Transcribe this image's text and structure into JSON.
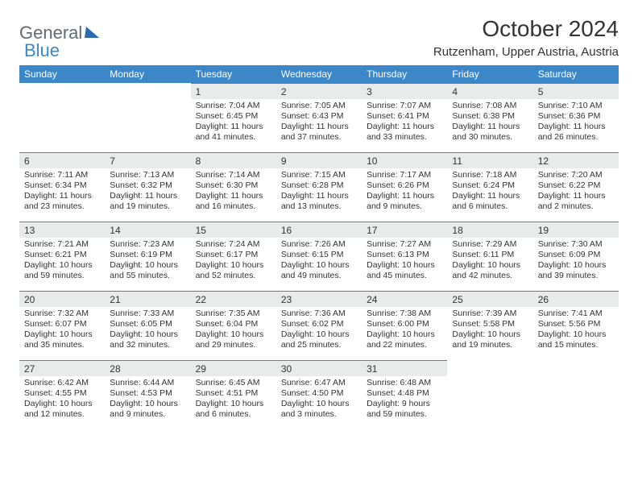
{
  "brand": {
    "part1": "General",
    "part2": "Blue"
  },
  "title": "October 2024",
  "subtitle": "Rutzenham, Upper Austria, Austria",
  "colors": {
    "header_bg": "#3b87c8",
    "header_text": "#ffffff",
    "daynum_bg": "#e9eaea",
    "daynum_border": "#3b87c8",
    "body_bg": "#ffffff",
    "text": "#333333",
    "logo_gray": "#5f6b74",
    "logo_blue": "#3b87c8"
  },
  "dow": [
    "Sunday",
    "Monday",
    "Tuesday",
    "Wednesday",
    "Thursday",
    "Friday",
    "Saturday"
  ],
  "weeks": [
    [
      null,
      null,
      {
        "n": "1",
        "sr": "7:04 AM",
        "ss": "6:45 PM",
        "dl": "11 hours and 41 minutes."
      },
      {
        "n": "2",
        "sr": "7:05 AM",
        "ss": "6:43 PM",
        "dl": "11 hours and 37 minutes."
      },
      {
        "n": "3",
        "sr": "7:07 AM",
        "ss": "6:41 PM",
        "dl": "11 hours and 33 minutes."
      },
      {
        "n": "4",
        "sr": "7:08 AM",
        "ss": "6:38 PM",
        "dl": "11 hours and 30 minutes."
      },
      {
        "n": "5",
        "sr": "7:10 AM",
        "ss": "6:36 PM",
        "dl": "11 hours and 26 minutes."
      }
    ],
    [
      {
        "n": "6",
        "sr": "7:11 AM",
        "ss": "6:34 PM",
        "dl": "11 hours and 23 minutes."
      },
      {
        "n": "7",
        "sr": "7:13 AM",
        "ss": "6:32 PM",
        "dl": "11 hours and 19 minutes."
      },
      {
        "n": "8",
        "sr": "7:14 AM",
        "ss": "6:30 PM",
        "dl": "11 hours and 16 minutes."
      },
      {
        "n": "9",
        "sr": "7:15 AM",
        "ss": "6:28 PM",
        "dl": "11 hours and 13 minutes."
      },
      {
        "n": "10",
        "sr": "7:17 AM",
        "ss": "6:26 PM",
        "dl": "11 hours and 9 minutes."
      },
      {
        "n": "11",
        "sr": "7:18 AM",
        "ss": "6:24 PM",
        "dl": "11 hours and 6 minutes."
      },
      {
        "n": "12",
        "sr": "7:20 AM",
        "ss": "6:22 PM",
        "dl": "11 hours and 2 minutes."
      }
    ],
    [
      {
        "n": "13",
        "sr": "7:21 AM",
        "ss": "6:21 PM",
        "dl": "10 hours and 59 minutes."
      },
      {
        "n": "14",
        "sr": "7:23 AM",
        "ss": "6:19 PM",
        "dl": "10 hours and 55 minutes."
      },
      {
        "n": "15",
        "sr": "7:24 AM",
        "ss": "6:17 PM",
        "dl": "10 hours and 52 minutes."
      },
      {
        "n": "16",
        "sr": "7:26 AM",
        "ss": "6:15 PM",
        "dl": "10 hours and 49 minutes."
      },
      {
        "n": "17",
        "sr": "7:27 AM",
        "ss": "6:13 PM",
        "dl": "10 hours and 45 minutes."
      },
      {
        "n": "18",
        "sr": "7:29 AM",
        "ss": "6:11 PM",
        "dl": "10 hours and 42 minutes."
      },
      {
        "n": "19",
        "sr": "7:30 AM",
        "ss": "6:09 PM",
        "dl": "10 hours and 39 minutes."
      }
    ],
    [
      {
        "n": "20",
        "sr": "7:32 AM",
        "ss": "6:07 PM",
        "dl": "10 hours and 35 minutes."
      },
      {
        "n": "21",
        "sr": "7:33 AM",
        "ss": "6:05 PM",
        "dl": "10 hours and 32 minutes."
      },
      {
        "n": "22",
        "sr": "7:35 AM",
        "ss": "6:04 PM",
        "dl": "10 hours and 29 minutes."
      },
      {
        "n": "23",
        "sr": "7:36 AM",
        "ss": "6:02 PM",
        "dl": "10 hours and 25 minutes."
      },
      {
        "n": "24",
        "sr": "7:38 AM",
        "ss": "6:00 PM",
        "dl": "10 hours and 22 minutes."
      },
      {
        "n": "25",
        "sr": "7:39 AM",
        "ss": "5:58 PM",
        "dl": "10 hours and 19 minutes."
      },
      {
        "n": "26",
        "sr": "7:41 AM",
        "ss": "5:56 PM",
        "dl": "10 hours and 15 minutes."
      }
    ],
    [
      {
        "n": "27",
        "sr": "6:42 AM",
        "ss": "4:55 PM",
        "dl": "10 hours and 12 minutes."
      },
      {
        "n": "28",
        "sr": "6:44 AM",
        "ss": "4:53 PM",
        "dl": "10 hours and 9 minutes."
      },
      {
        "n": "29",
        "sr": "6:45 AM",
        "ss": "4:51 PM",
        "dl": "10 hours and 6 minutes."
      },
      {
        "n": "30",
        "sr": "6:47 AM",
        "ss": "4:50 PM",
        "dl": "10 hours and 3 minutes."
      },
      {
        "n": "31",
        "sr": "6:48 AM",
        "ss": "4:48 PM",
        "dl": "9 hours and 59 minutes."
      },
      null,
      null
    ]
  ],
  "labels": {
    "sunrise": "Sunrise: ",
    "sunset": "Sunset: ",
    "daylight": "Daylight: "
  }
}
